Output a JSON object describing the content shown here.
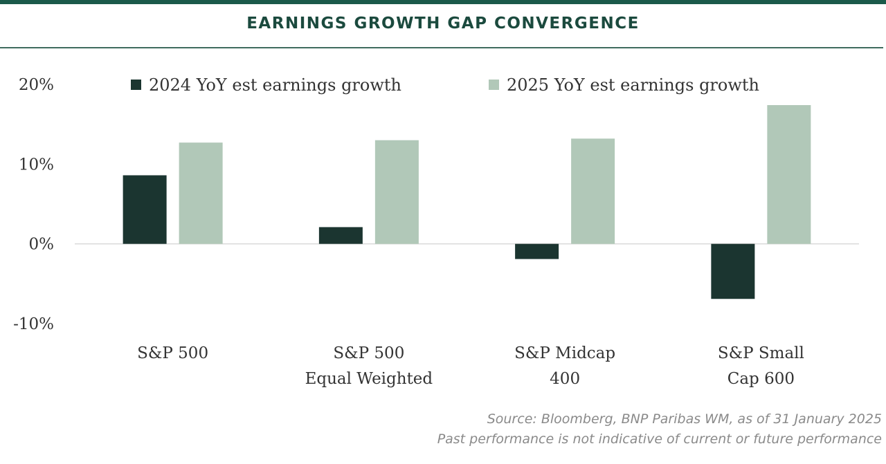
{
  "title": "EARNINGS GROWTH GAP CONVERGENCE",
  "source_line1": "Source: Bloomberg, BNP Paribas WM, as of 31 January 2025",
  "source_line2": "Past performance is not indicative of current or future performance",
  "colors": {
    "brand": "#1b5a4a",
    "series_2024": "#1b3530",
    "series_2025": "#b1c8b8"
  },
  "chart_data": {
    "type": "bar",
    "categories": [
      [
        "S&P 500"
      ],
      [
        "S&P 500",
        "Equal Weighted"
      ],
      [
        "S&P Midcap",
        "400"
      ],
      [
        "S&P Small",
        "Cap 600"
      ]
    ],
    "series": [
      {
        "name": "2024 YoY est earnings growth",
        "values": [
          8.6,
          2.1,
          -1.9,
          -6.9
        ]
      },
      {
        "name": "2025 YoY est earnings growth",
        "values": [
          12.7,
          13.0,
          13.2,
          17.4
        ]
      }
    ],
    "ylim": [
      -10,
      20
    ],
    "yticks": [
      20,
      10,
      0,
      -10
    ],
    "ytick_labels": [
      "20%",
      "10%",
      "0%",
      "-10%"
    ],
    "xlabel": "",
    "ylabel": "",
    "legend_position": "top",
    "grid": false
  }
}
